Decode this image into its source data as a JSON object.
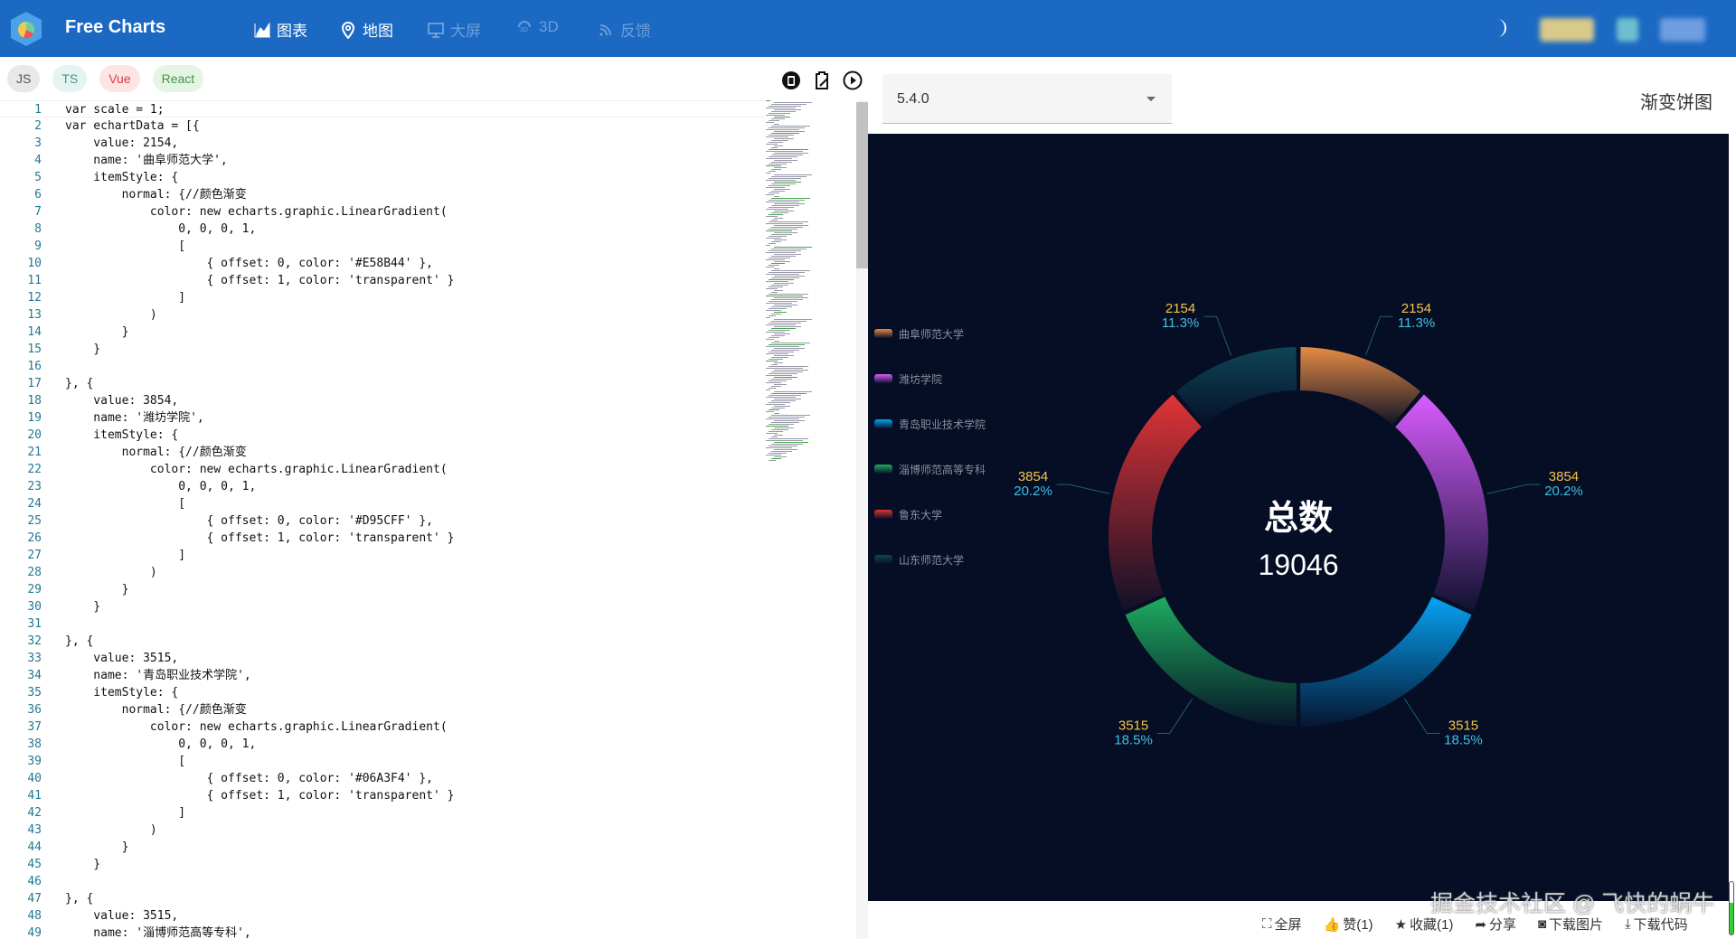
{
  "header": {
    "brand": "Free Charts",
    "nav": [
      {
        "label": "图表",
        "icon": "chart-icon",
        "active": true
      },
      {
        "label": "地图",
        "icon": "map-pin-icon",
        "active": true
      },
      {
        "label": "大屏",
        "icon": "screen-icon",
        "active": false
      },
      {
        "label": "3D",
        "icon": "3d-icon",
        "active": false
      },
      {
        "label": "反馈",
        "icon": "rss-icon",
        "active": false
      }
    ],
    "theme_icon": "moon-icon"
  },
  "tabs": [
    {
      "label": "JS",
      "bg": "#e8e8e8",
      "fg": "#555"
    },
    {
      "label": "TS",
      "bg": "#e6f4f1",
      "fg": "#3a9a8a"
    },
    {
      "label": "Vue",
      "bg": "#fde5e5",
      "fg": "#e0393e"
    },
    {
      "label": "React",
      "bg": "#e6f4e6",
      "fg": "#3c9a3c"
    }
  ],
  "editor_toolbar": [
    "trash-icon",
    "clipboard-icon",
    "play-icon"
  ],
  "code": [
    "var scale = 1;",
    "var echartData = [{",
    "    value: 2154,",
    "    name: '曲阜师范大学',",
    "    itemStyle: {",
    "        normal: {//颜色渐变",
    "            color: new echarts.graphic.LinearGradient(",
    "                0, 0, 0, 1,",
    "                [",
    "                    { offset: 0, color: '#E58B44' },",
    "                    { offset: 1, color: 'transparent' }",
    "                ]",
    "            )",
    "        }",
    "    }",
    "",
    "}, {",
    "    value: 3854,",
    "    name: '潍坊学院',",
    "    itemStyle: {",
    "        normal: {//颜色渐变",
    "            color: new echarts.graphic.LinearGradient(",
    "                0, 0, 0, 1,",
    "                [",
    "                    { offset: 0, color: '#D95CFF' },",
    "                    { offset: 1, color: 'transparent' }",
    "                ]",
    "            )",
    "        }",
    "    }",
    "",
    "}, {",
    "    value: 3515,",
    "    name: '青岛职业技术学院',",
    "    itemStyle: {",
    "        normal: {//颜色渐变",
    "            color: new echarts.graphic.LinearGradient(",
    "                0, 0, 0, 1,",
    "                [",
    "                    { offset: 0, color: '#06A3F4' },",
    "                    { offset: 1, color: 'transparent' }",
    "                ]",
    "            )",
    "        }",
    "    }",
    "",
    "}, {",
    "    value: 3515,",
    "    name: '淄博师范高等专科',"
  ],
  "version": "5.4.0",
  "chart_title": "渐变饼图",
  "chart_data": {
    "type": "pie",
    "donut": true,
    "center_label": "总数",
    "total": "19046",
    "slices": [
      {
        "name": "曲阜师范大学",
        "value": 2154,
        "percent": "11.3%",
        "color": "#E58B44"
      },
      {
        "name": "潍坊学院",
        "value": 3854,
        "percent": "20.2%",
        "color": "#D95CFF"
      },
      {
        "name": "青岛职业技术学院",
        "value": 3515,
        "percent": "18.5%",
        "color": "#06A3F4"
      },
      {
        "name": "淄博师范高等专科",
        "value": 3515,
        "percent": "18.5%",
        "color": "#1FAB5E"
      },
      {
        "name": "鲁东大学",
        "value": 3854,
        "percent": "20.2%",
        "color": "#E03436"
      },
      {
        "name": "山东师范大学",
        "value": 2154,
        "percent": "11.3%",
        "color": "#0E4556"
      }
    ],
    "legend_position": "left",
    "value_label_color": "#F5C542",
    "percent_label_color": "#3FC1E0",
    "background": "#060E26"
  },
  "watermark": "掘金技术社区 @ 飞快的蜗牛",
  "footer": [
    {
      "label": "全屏",
      "icon": "fullscreen-icon"
    },
    {
      "label": "赞(1)",
      "icon": "thumbs-up-icon"
    },
    {
      "label": "收藏(1)",
      "icon": "star-icon"
    },
    {
      "label": "分享",
      "icon": "share-icon"
    },
    {
      "label": "下载图片",
      "icon": "camera-icon"
    },
    {
      "label": "下载代码",
      "icon": "download-icon"
    }
  ]
}
